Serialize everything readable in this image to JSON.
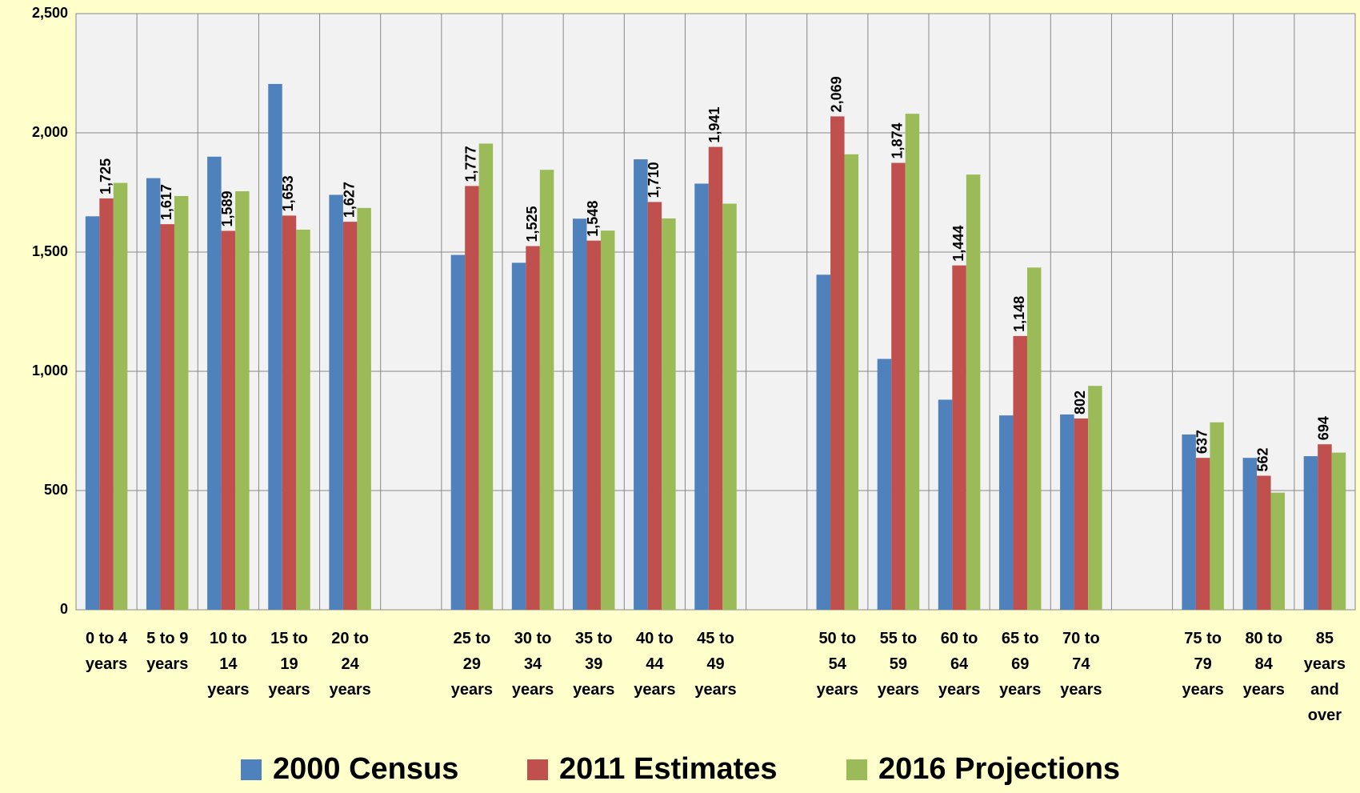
{
  "chart_data": {
    "type": "bar",
    "categories": [
      "0 to 4 years",
      "5 to 9 years",
      "10 to 14 years",
      "15 to 19 years",
      "20 to 24 years",
      null,
      "25 to 29 years",
      "30 to 34 years",
      "35 to 39 years",
      "40 to 44 years",
      "45 to 49 years",
      null,
      "50 to 54 years",
      "55 to 59 years",
      "60 to 64 years",
      "65 to 69 years",
      "70 to 74 years",
      null,
      "75 to 79 years",
      "80 to 84 years",
      "85 years and over"
    ],
    "series": [
      {
        "name": "2000 Census",
        "color": "#4f81bd",
        "values": [
          1650,
          1810,
          1900,
          2205,
          1740,
          null,
          1488,
          1455,
          1640,
          1889,
          1787,
          null,
          1405,
          1052,
          881,
          815,
          819,
          null,
          735,
          637,
          644
        ]
      },
      {
        "name": "2011 Estimates",
        "color": "#c0504d",
        "values": [
          1725,
          1617,
          1589,
          1653,
          1627,
          null,
          1777,
          1525,
          1548,
          1710,
          1941,
          null,
          2069,
          1874,
          1444,
          1148,
          802,
          null,
          637,
          562,
          694
        ],
        "value_labels": [
          "1,725",
          "1,617",
          "1,589",
          "1,653",
          "1,627",
          null,
          "1,777",
          "1,525",
          "1,548",
          "1,710",
          "1,941",
          null,
          "2,069",
          "1,874",
          "1,444",
          "1,148",
          "802",
          null,
          "637",
          "562",
          "694"
        ]
      },
      {
        "name": "2016 Projections",
        "color": "#9bbb59",
        "values": [
          1790,
          1735,
          1755,
          1594,
          1685,
          null,
          1955,
          1845,
          1590,
          1641,
          1703,
          null,
          1910,
          2080,
          1825,
          1435,
          939,
          null,
          786,
          491,
          659
        ]
      }
    ],
    "ylim": [
      0,
      2500
    ],
    "yticks": [
      0,
      500,
      {
        "value": 1000,
        "label": "1,000"
      },
      {
        "value": 1500,
        "label": "1,500"
      },
      {
        "value": 2000,
        "label": "2,000"
      },
      {
        "value": 2500,
        "label": "2,500"
      }
    ],
    "grid": true
  }
}
